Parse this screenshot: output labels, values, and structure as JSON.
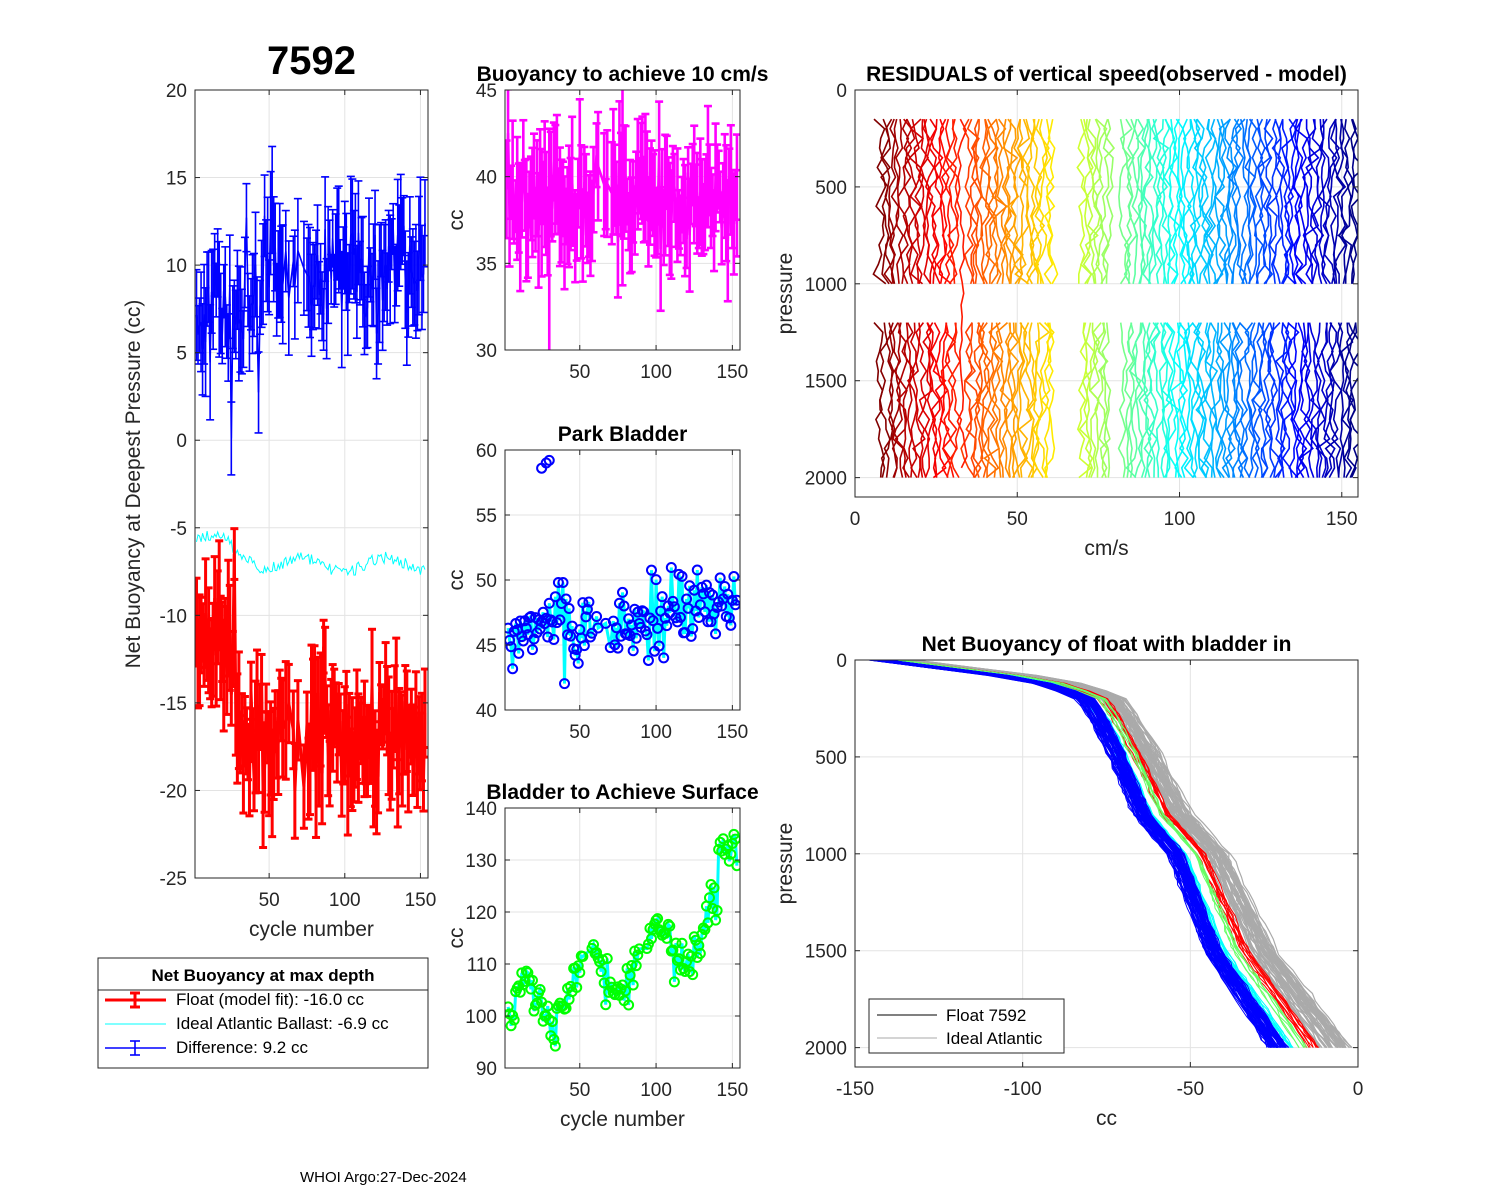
{
  "footer": "WHOI Argo:27-Dec-2024",
  "colors": {
    "red": "#ff0000",
    "blue": "#0000ff",
    "cyan": "#00ffff",
    "magenta": "#ff00ff",
    "green": "#00ff00",
    "gray": "#aaaaaa",
    "black": "#000000"
  },
  "chart_data": [
    {
      "id": "net_buoyancy",
      "type": "line",
      "title": "7592",
      "xlabel": "cycle number",
      "ylabel": "Net Buoyancy at Deepest Pressure (cc)",
      "xlim": [
        1,
        155
      ],
      "ylim": [
        -25,
        20
      ],
      "xticks": [
        50,
        100,
        150
      ],
      "yticks": [
        -25,
        -20,
        -15,
        -10,
        -5,
        0,
        5,
        10,
        15,
        20
      ],
      "grid": true,
      "series": [
        {
          "name": "Float (model fit): -16.0 cc",
          "mean": -16.0,
          "style": "errorbar",
          "color": "#ff0000"
        },
        {
          "name": "Ideal Atlantic Ballast:  -6.9 cc",
          "mean": -6.9,
          "style": "line",
          "color": "#00ffff"
        },
        {
          "name": "Difference:   9.2 cc",
          "mean": 9.2,
          "style": "errorbar",
          "color": "#0000ff"
        }
      ],
      "legend": {
        "title": "Net Buoyancy at max depth",
        "entries": [
          "Float (model fit): -16.0 cc",
          "Ideal Atlantic Ballast:  -6.9 cc",
          "Difference:   9.2 cc"
        ],
        "placement": "below"
      }
    },
    {
      "id": "buoyancy_10cms",
      "type": "line",
      "title": "Buoyancy to achieve 10 cm/s",
      "ylabel": "cc",
      "xlim": [
        1,
        155
      ],
      "ylim": [
        30,
        45
      ],
      "xticks": [
        50,
        100,
        150
      ],
      "yticks": [
        30,
        35,
        40,
        45
      ],
      "grid": true,
      "series": [
        {
          "name": "buoyancy",
          "mean": 38.5,
          "style": "errorbar",
          "color": "#ff00ff"
        }
      ]
    },
    {
      "id": "park_bladder",
      "type": "line",
      "title": "Park Bladder",
      "ylabel": "cc",
      "xlim": [
        1,
        155
      ],
      "ylim": [
        40,
        60
      ],
      "xticks": [
        50,
        100,
        150
      ],
      "yticks": [
        40,
        45,
        50,
        55,
        60
      ],
      "grid": true,
      "outliers": [
        [
          25,
          58.6
        ],
        [
          28,
          59.0
        ],
        [
          30,
          59.2
        ]
      ],
      "series": [
        {
          "name": "park bladder",
          "start": 45,
          "end": 48.5,
          "style": "line-circle",
          "color": "#00ffff",
          "marker": "#0000ff"
        }
      ]
    },
    {
      "id": "bladder_surface",
      "type": "line",
      "title": "Bladder to Achieve Surface",
      "xlabel": "cycle number",
      "ylabel": "cc",
      "xlim": [
        1,
        155
      ],
      "ylim": [
        90,
        140
      ],
      "xticks": [
        50,
        100,
        150
      ],
      "yticks": [
        90,
        100,
        110,
        120,
        130,
        140
      ],
      "grid": true,
      "series": [
        {
          "name": "bladder surface",
          "start": 100,
          "end": 130,
          "style": "line-circle",
          "color": "#00ffff",
          "marker": "#00ff00"
        }
      ]
    },
    {
      "id": "residuals",
      "type": "line",
      "title": "RESIDUALS of vertical speed(observed - model)",
      "xlabel": "cm/s",
      "ylabel": "pressure",
      "xlim": [
        0,
        155
      ],
      "ylim": [
        0,
        2100
      ],
      "xticks": [
        0,
        50,
        100,
        150
      ],
      "yticks": [
        0,
        500,
        1000,
        1500,
        2000
      ],
      "grid": true,
      "groups": [
        [
          8,
          32
        ],
        [
          35,
          61
        ],
        [
          70,
          79
        ],
        [
          83,
          155
        ]
      ]
    },
    {
      "id": "net_buoyancy_profile",
      "type": "line",
      "title": "Net Buoyancy of float with bladder in",
      "xlabel": "cc",
      "ylabel": "pressure",
      "xlim": [
        -150,
        0
      ],
      "ylim": [
        0,
        2100
      ],
      "xticks": [
        -150,
        -100,
        -50,
        0
      ],
      "yticks": [
        0,
        500,
        1000,
        1500,
        2000
      ],
      "grid": true,
      "profile": {
        "p": [
          0,
          100,
          150,
          200,
          300,
          500,
          800,
          1000,
          1500,
          2000
        ],
        "cc": [
          -140,
          -95,
          -85,
          -78,
          -74,
          -68,
          -60,
          -50,
          -38,
          -18
        ]
      },
      "legend": {
        "entries": [
          "Float 7592",
          "Ideal Atlantic"
        ],
        "placement": "bottom-left"
      }
    }
  ]
}
